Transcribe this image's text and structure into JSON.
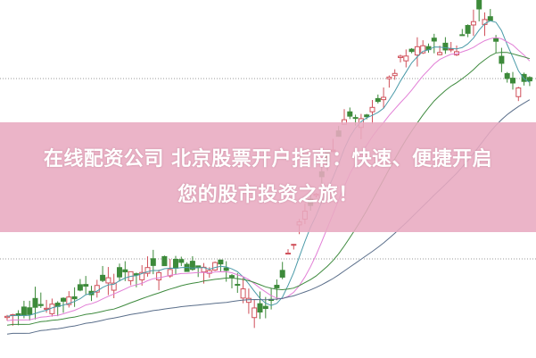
{
  "headline": {
    "line1": "在线配资公司 北京股票开户指南：快速、便捷开启",
    "line2": "您的股市投资之旅！"
  },
  "colors": {
    "up": "#d0505a",
    "down": "#3d8a3a",
    "banner": "#e8aac0",
    "ma_fast": "#4a9aa8",
    "ma_mid": "#e27fd6",
    "ma_slow": "#3e8a3e",
    "ma_long": "#5a6e8a"
  }
}
